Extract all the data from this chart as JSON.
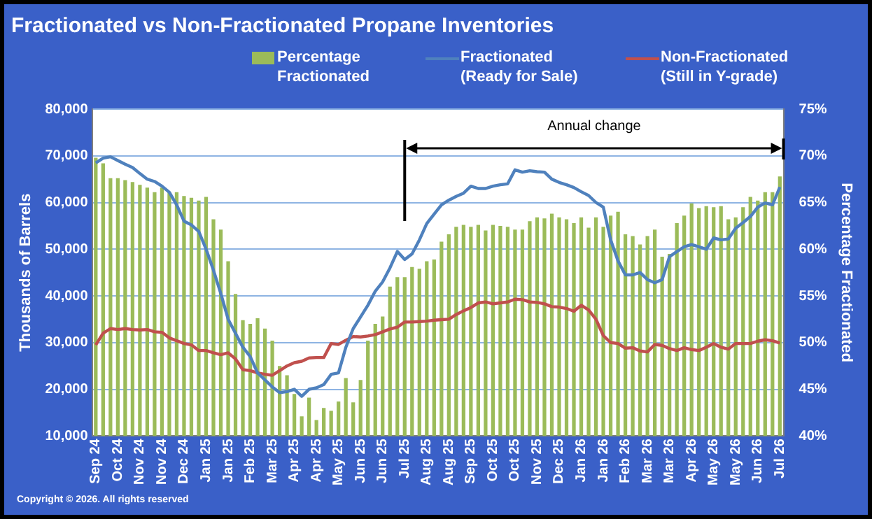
{
  "chart_data": {
    "type": "bar",
    "title": "Fractionated vs Non-Fractionated Propane Inventories",
    "ylabel": "Thousands of Barrels",
    "y2label": "Percentage Fractionated",
    "categories": [
      "Sep 24",
      null,
      null,
      "Oct 24",
      null,
      null,
      "Nov 24",
      null,
      null,
      "Nov 24",
      null,
      null,
      "Dec 24",
      null,
      null,
      "Jan 25",
      null,
      null,
      "Jan 25",
      null,
      null,
      "Feb 25",
      null,
      null,
      "Mar 25",
      null,
      null,
      "Apr 25",
      null,
      null,
      "Apr 25",
      null,
      null,
      "May 25",
      null,
      null,
      "Jun 25",
      null,
      null,
      "Jun 25",
      null,
      null,
      "Jul 25",
      null,
      null,
      "Aug 25",
      null,
      null,
      "Aug 25",
      null,
      null,
      "Sep 25",
      null,
      null,
      "Oct 25",
      null,
      null,
      "Oct 25",
      null,
      null,
      "Nov 25",
      null,
      null,
      "Dec 25",
      null,
      null,
      "Jan 26",
      null,
      null,
      "Jan 26",
      null,
      null,
      "Feb 26",
      null,
      null,
      "Mar 26",
      null,
      null,
      "Mar 26",
      null,
      null,
      "Apr 26",
      null,
      null,
      "May 26",
      null,
      null,
      "May 26",
      null,
      null,
      "Jun 26",
      null,
      null,
      "Jul 26"
    ],
    "series": [
      {
        "name": "Percentage Fractionated",
        "axis": "y2",
        "color": "#9bbb59",
        "values": [
          69.8,
          69.2,
          67.6,
          67.6,
          67.4,
          67.2,
          66.9,
          66.6,
          66.1,
          66.6,
          66.1,
          66.1,
          65.7,
          65.5,
          65.2,
          65.6,
          63.2,
          62.1,
          58.7,
          55.2,
          52.4,
          52,
          52.6,
          51.5,
          50.2,
          47.5,
          46.5,
          44.5,
          42.1,
          44.1,
          41.7,
          43,
          42.7,
          43.7,
          46.2,
          43.6,
          46,
          50.2,
          52,
          52.8,
          56,
          57,
          57,
          58.1,
          57.9,
          58.7,
          58.9,
          60.8,
          61.6,
          62.4,
          62.6,
          62.4,
          62.6,
          62,
          62.6,
          62.5,
          62.4,
          62.1,
          62.1,
          63,
          63.4,
          63.3,
          63.8,
          63.4,
          63.2,
          62.8,
          63.4,
          62.3,
          63.4,
          62.4,
          63.6,
          64,
          61.6,
          61.4,
          60.5,
          61.4,
          62.1,
          59.2,
          59.5,
          62.8,
          63.6,
          64.9,
          64.4,
          64.6,
          64.5,
          64.6,
          63.2,
          63.4,
          64.5,
          65.6,
          65.2,
          66.1,
          66.1,
          67.8
        ]
      },
      {
        "name": "Fractionated (Ready for Sale)",
        "type": "line",
        "color": "#4f81bd",
        "values": [
          68500,
          69500,
          69800,
          69000,
          68200,
          67500,
          66200,
          65000,
          64500,
          63500,
          62200,
          59500,
          56000,
          55200,
          53800,
          50000,
          45500,
          40500,
          35000,
          32000,
          29000,
          27000,
          23500,
          22000,
          20500,
          19300,
          19500,
          20000,
          18500,
          20000,
          20300,
          21000,
          23200,
          23500,
          29000,
          33000,
          35500,
          38000,
          41000,
          43000,
          46000,
          49500,
          47800,
          49000,
          52000,
          55500,
          57500,
          59500,
          60500,
          61300,
          62000,
          63500,
          63000,
          63000,
          63500,
          63800,
          64000,
          67000,
          66500,
          66800,
          66600,
          66500,
          65000,
          64300,
          63800,
          63200,
          62300,
          61500,
          60000,
          59000,
          52000,
          47500,
          44500,
          44500,
          45000,
          43500,
          42800,
          43500,
          48400,
          49500,
          50500,
          51000,
          50500,
          50000,
          52400,
          52000,
          52200,
          54500,
          55700,
          57000,
          59000,
          59900,
          59500,
          63300
        ]
      },
      {
        "name": "Non-Fractionated (Still in Y-grade)",
        "type": "line",
        "color": "#c0504d",
        "values": [
          29500,
          32000,
          33000,
          32800,
          33000,
          32800,
          32700,
          32800,
          32300,
          32200,
          31000,
          30400,
          29800,
          29500,
          28300,
          28300,
          27800,
          27400,
          27800,
          26500,
          24200,
          24000,
          23500,
          23200,
          23000,
          24000,
          25000,
          25700,
          26000,
          26700,
          26800,
          26800,
          29800,
          29600,
          30500,
          31300,
          31200,
          31400,
          31700,
          32300,
          32900,
          33300,
          34400,
          34400,
          34500,
          34600,
          34800,
          34900,
          35000,
          36000,
          36800,
          37500,
          38500,
          38700,
          38300,
          38500,
          38700,
          39300,
          39200,
          38700,
          38600,
          38300,
          37700,
          37600,
          37300,
          36700,
          38000,
          37000,
          35000,
          31500,
          30000,
          29800,
          28800,
          28900,
          28200,
          28000,
          29600,
          29400,
          28700,
          28300,
          28900,
          28500,
          28300,
          29000,
          29800,
          29000,
          28600,
          29800,
          29800,
          29800,
          30300,
          30600,
          30400,
          29900
        ]
      }
    ],
    "ylim": [
      10000,
      80000
    ],
    "yticks": [
      {
        "value": 10000,
        "label": "10,000"
      },
      {
        "value": 20000,
        "label": "20,000"
      },
      {
        "value": 30000,
        "label": "30,000"
      },
      {
        "value": 40000,
        "label": "40,000"
      },
      {
        "value": 50000,
        "label": "50,000"
      },
      {
        "value": 60000,
        "label": "60,000"
      },
      {
        "value": 70000,
        "label": "70,000"
      },
      {
        "value": 80000,
        "label": "80,000"
      }
    ],
    "y2lim": [
      40,
      75
    ],
    "y2ticks": [
      {
        "value": 40,
        "label": "40%"
      },
      {
        "value": 45,
        "label": "45%"
      },
      {
        "value": 50,
        "label": "50%"
      },
      {
        "value": 55,
        "label": "55%"
      },
      {
        "value": 60,
        "label": "60%"
      },
      {
        "value": 65,
        "label": "65%"
      },
      {
        "value": 70,
        "label": "70%"
      },
      {
        "value": 75,
        "label": "75%"
      }
    ],
    "ref_lines": [
      {
        "axis": "x",
        "value": "Jul 25",
        "color": "#000000"
      }
    ],
    "grid": "y",
    "legend": "top",
    "marker": "none",
    "line_style": "solid",
    "annotations": [
      "Annual change",
      "Copyright © 2026. All rights reserved"
    ]
  }
}
